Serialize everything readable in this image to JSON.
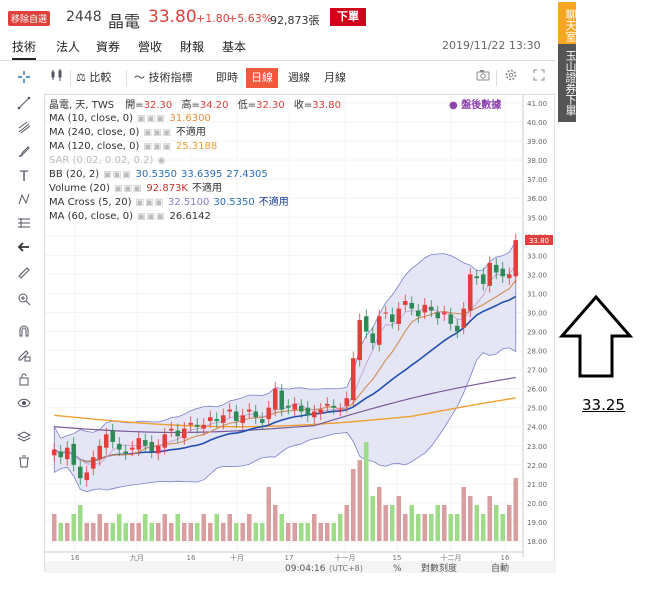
{
  "header": {
    "badge": "移除自選",
    "code": "2448",
    "name": "晶電",
    "price": "33.80",
    "change": "+1.80",
    "change_pct": "+5.63%",
    "volume": "92,873張",
    "order_button": "下單"
  },
  "nav": {
    "tabs": [
      "技術",
      "法人",
      "資券",
      "營收",
      "財報",
      "基本"
    ],
    "datetime": "2019/11/22 13:30"
  },
  "toolbar": {
    "compare": "比較",
    "indicators": "技術指標",
    "intraday": "即時",
    "daily": "日線",
    "weekly": "週線",
    "monthly": "月線"
  },
  "legend": {
    "symbol": "晶電, 天, TWS",
    "open_label": "開=",
    "open": "32.30",
    "high_label": "高=",
    "high": "34.20",
    "low_label": "低=",
    "low": "32.30",
    "close_label": "收=",
    "close": "33.80",
    "after_hours": "盤後數據",
    "rows": [
      {
        "name": "MA (10, close, 0)",
        "values": [
          "31.6300"
        ],
        "colors": [
          "#e58f3a"
        ]
      },
      {
        "name": "MA (240, close, 0)",
        "values": [
          "不適用"
        ],
        "colors": [
          "#333333"
        ]
      },
      {
        "name": "MA (120, close, 0)",
        "values": [
          "25.3188"
        ],
        "colors": [
          "#f0a030"
        ]
      },
      {
        "name": "SAR (0.02, 0.02, 0.2)",
        "values": [],
        "colors": []
      },
      {
        "name": "BB (20, 2)",
        "values": [
          "30.5350",
          "33.6395",
          "27.4305"
        ],
        "colors": [
          "#2a6fb3",
          "#2a6fb3",
          "#2a6fb3"
        ]
      },
      {
        "name": "Volume (20)",
        "values": [
          "92.873K",
          "不適用"
        ],
        "colors": [
          "#c0392b",
          "#333333"
        ]
      },
      {
        "name": "MA Cross (5, 20)",
        "values": [
          "32.5100",
          "30.5350",
          "不適用"
        ],
        "colors": [
          "#8e7cc3",
          "#2a6fb3",
          "#1a3a8f"
        ]
      },
      {
        "name": "MA (60, close, 0)",
        "values": [
          "26.6142"
        ],
        "colors": [
          "#333333"
        ]
      }
    ]
  },
  "price_axis": {
    "ticks": [
      "41.00",
      "40.00",
      "39.00",
      "38.00",
      "37.00",
      "36.00",
      "35.00",
      "34.00",
      "33.00",
      "32.00",
      "31.00",
      "30.00",
      "29.00",
      "28.00",
      "27.00",
      "26.00",
      "25.00",
      "24.00",
      "23.00",
      "22.00",
      "21.00",
      "20.00",
      "19.00",
      "18.00"
    ],
    "current": "33.80"
  },
  "time_axis": {
    "labels": [
      "16",
      "九月",
      "16",
      "十月",
      "17",
      "十一月",
      "15",
      "十二月",
      "16"
    ]
  },
  "bottom_bar": {
    "time": "09:04:16",
    "tz": "(UTC+8)",
    "pct": "%",
    "log": "對數刻度",
    "auto": "自動"
  },
  "side_tabs": {
    "chat": "聊天室",
    "broker": "玉山證券下單"
  },
  "annotation": "33.25",
  "colors": {
    "up": "#e0403b",
    "down": "#2e8b57",
    "accent": "#f05a3c",
    "bb_fill": "#dfe0f3",
    "bb_line": "#7b7fc9",
    "ma_blue": "#1f4fb0",
    "ma_orange": "#f0a030",
    "ma_brown": "#d08a50",
    "ma_purple": "#7a5a9a",
    "vol_up": "#d89ea0",
    "vol_down": "#9fdc8a"
  }
}
